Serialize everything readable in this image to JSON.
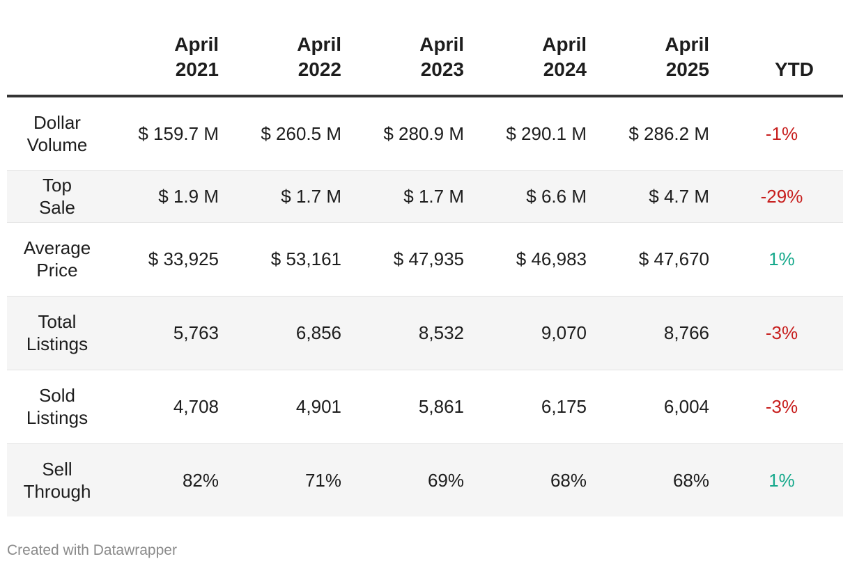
{
  "chart_data": {
    "type": "table",
    "columns": [
      {
        "line1": "",
        "line2": ""
      },
      {
        "line1": "April",
        "line2": "2021"
      },
      {
        "line1": "April",
        "line2": "2022"
      },
      {
        "line1": "April",
        "line2": "2023"
      },
      {
        "line1": "April",
        "line2": "2024"
      },
      {
        "line1": "April",
        "line2": "2025"
      },
      {
        "line1": "",
        "line2": "YTD"
      }
    ],
    "rows": [
      {
        "label": "Dollar Volume",
        "values": [
          "$ 159.7 M",
          "$ 260.5 M",
          "$ 280.9 M",
          "$ 290.1 M",
          "$ 286.2 M"
        ],
        "ytd": "-1%"
      },
      {
        "label": "Top Sale",
        "values": [
          "$ 1.9 M",
          "$ 1.7 M",
          "$ 1.7 M",
          "$ 6.6 M",
          "$ 4.7 M"
        ],
        "ytd": "-29%"
      },
      {
        "label": "Average Price",
        "values": [
          "$ 33,925",
          "$ 53,161",
          "$ 47,935",
          "$ 46,983",
          "$ 47,670"
        ],
        "ytd": "1%"
      },
      {
        "label": "Total Listings",
        "values": [
          "5,763",
          "6,856",
          "8,532",
          "9,070",
          "8,766"
        ],
        "ytd": "-3%"
      },
      {
        "label": "Sold Listings",
        "values": [
          "4,708",
          "4,901",
          "5,861",
          "6,175",
          "6,004"
        ],
        "ytd": "-3%"
      },
      {
        "label": "Sell Through",
        "values": [
          "82%",
          "71%",
          "69%",
          "68%",
          "68%"
        ],
        "ytd": "1%"
      }
    ]
  },
  "colors": {
    "negative": "#c71e1d",
    "positive": "#15a88b",
    "header_rule": "#333333",
    "row_shade": "#f5f5f5"
  },
  "footer": {
    "credit": "Created with Datawrapper"
  }
}
